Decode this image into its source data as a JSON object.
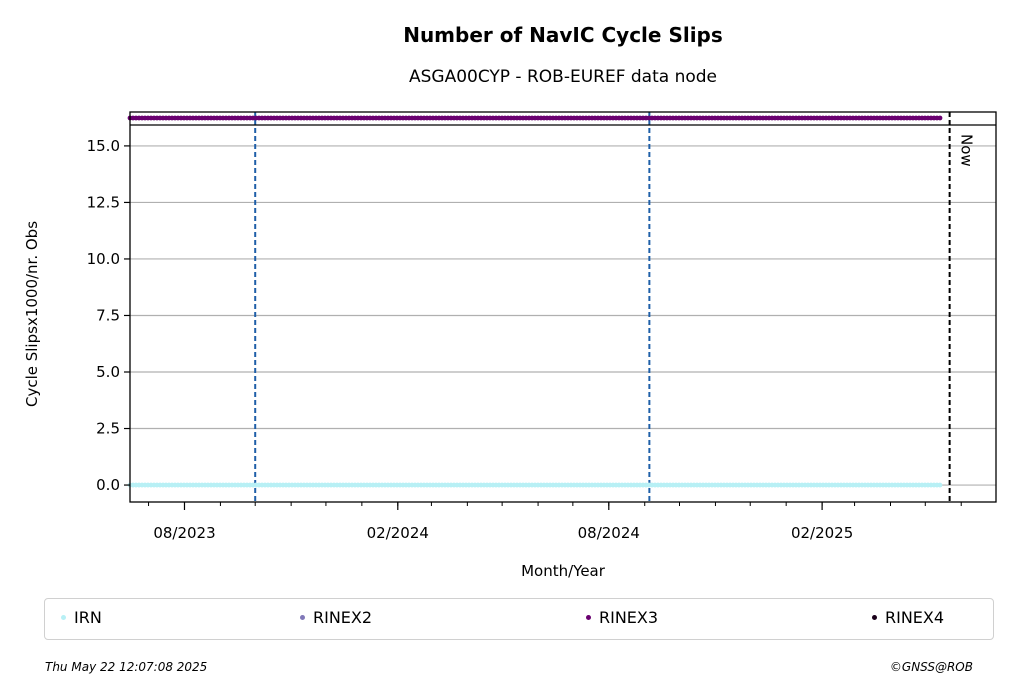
{
  "chart_data": {
    "type": "scatter",
    "title": "Number of NavIC Cycle Slips",
    "subtitle": "ASGA00CYP - ROB-EUREF data node",
    "xlabel": "Month/Year",
    "ylabel": "Cycle Slipsx1000/nr. Obs",
    "x_tick_labels": [
      "08/2023",
      "02/2024",
      "08/2024",
      "02/2025"
    ],
    "x_ticks": [
      "2023-08-01",
      "2024-02-01",
      "2024-08-01",
      "2025-02-01"
    ],
    "xlim": [
      "2023-06-15",
      "2025-07-01"
    ],
    "y_ticks": [
      "0.0",
      "2.5",
      "5.0",
      "7.5",
      "10.0",
      "12.5",
      "15.0"
    ],
    "ylim": [
      -0.75,
      16.5
    ],
    "grid": "horizontal",
    "vertical_markers": [
      {
        "date": "2023-10-01",
        "style": "dashed",
        "color": "#1f5fa8"
      },
      {
        "date": "2024-09-05",
        "style": "dashed",
        "color": "#1f5fa8"
      }
    ],
    "now_marker": {
      "label": "Now",
      "date": "2025-05-22"
    },
    "series": [
      {
        "name": "IRN",
        "color": "#b8f0f5",
        "x_range": [
          "2023-06-15",
          "2025-05-14"
        ],
        "y": 0.0
      },
      {
        "name": "RINEX2",
        "color": "#8078b8",
        "x_range": [],
        "y": null
      },
      {
        "name": "RINEX3",
        "color": "#6a0070",
        "x_range": [
          "2023-06-15",
          "2025-05-14"
        ],
        "y": "off-scale (top band)"
      },
      {
        "name": "RINEX4",
        "color": "#1a001a",
        "x_range": [],
        "y": null
      }
    ],
    "legend_position": "bottom"
  },
  "legend": [
    {
      "label": "IRN",
      "color": "#b8f0f5"
    },
    {
      "label": "RINEX2",
      "color": "#8078b8"
    },
    {
      "label": "RINEX3",
      "color": "#6a0070"
    },
    {
      "label": "RINEX4",
      "color": "#1a001a"
    }
  ],
  "footer": {
    "timestamp": "Thu May 22 12:07:08 2025",
    "credit": "©GNSS@ROB"
  }
}
